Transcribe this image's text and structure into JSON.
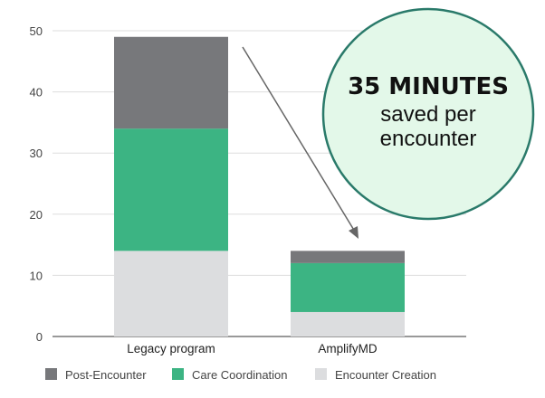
{
  "chart_data": {
    "type": "bar",
    "stacked": true,
    "title": "",
    "xlabel": "",
    "ylabel": "",
    "ylim": [
      0,
      50
    ],
    "yticks": [
      0,
      10,
      20,
      30,
      40,
      50
    ],
    "grid": true,
    "categories": [
      "Legacy program",
      "AmplifyMD"
    ],
    "series": [
      {
        "name": "Encounter Creation",
        "color": "#dcdddf",
        "values": [
          14,
          4
        ]
      },
      {
        "name": "Care Coordination",
        "color": "#3cb483",
        "values": [
          20,
          8
        ]
      },
      {
        "name": "Post-Encounter",
        "color": "#77787b",
        "values": [
          15,
          2
        ]
      }
    ],
    "legend_order": [
      2,
      1,
      0
    ],
    "legend_position": "bottom",
    "annotation": {
      "headline": "35 MINUTES",
      "line1": "saved per",
      "line2": "encounter",
      "fill": "#e3f8e9",
      "stroke": "#2a7a6a"
    }
  }
}
